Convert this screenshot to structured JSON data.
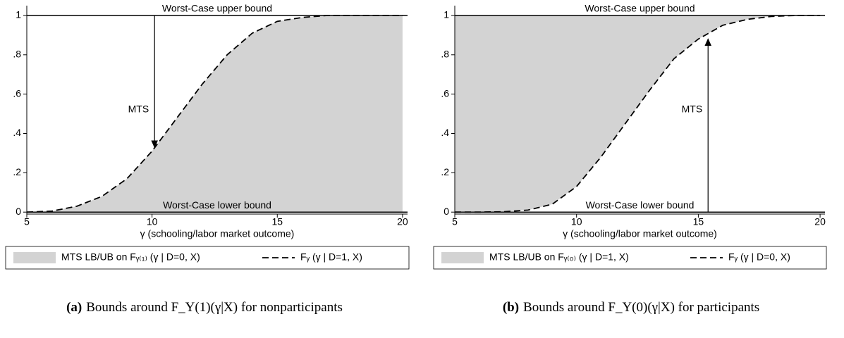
{
  "chart_data": [
    {
      "type": "line",
      "x_label": "γ (schooling/labor market outcome)",
      "x": [
        5,
        6,
        7,
        8,
        9,
        10,
        11,
        12,
        13,
        14,
        15,
        16,
        17,
        18,
        19,
        20
      ],
      "series": [
        {
          "name": "Fᵧ (γ | D=1, X)",
          "color": "#000000",
          "dash": true,
          "values": [
            0,
            0.005,
            0.03,
            0.08,
            0.17,
            0.31,
            0.48,
            0.65,
            0.8,
            0.91,
            0.97,
            0.99,
            1,
            1,
            1,
            1
          ]
        }
      ],
      "fill": {
        "name": "MTS LB/UB on Fᵧ₍₁₎ (γ | D=0, X)",
        "color": "#d3d3d3",
        "side": "below"
      },
      "bounds": [
        {
          "label": "Worst-Case upper bound",
          "value": 1
        },
        {
          "label": "Worst-Case lower bound",
          "value": 0
        }
      ],
      "annotation": {
        "text": "MTS",
        "x": 10.1,
        "from": 1,
        "to": 0.33
      },
      "xlim": [
        5,
        20.2
      ],
      "xticks": [
        5,
        10,
        15,
        20
      ],
      "ylim": [
        -0.01,
        1.05
      ],
      "yticks": [
        0,
        {
          "value": 0.2,
          "label": ".2"
        },
        {
          "value": 0.4,
          "label": ".4"
        },
        {
          "value": 0.6,
          "label": ".6"
        },
        {
          "value": 0.8,
          "label": ".8"
        },
        1
      ],
      "caption": {
        "label": "(a)",
        "text": "Bounds around F_Y(1)(γ|X) for nonparticipants"
      }
    },
    {
      "type": "line",
      "x_label": "γ (schooling/labor market outcome)",
      "x": [
        5,
        6,
        7,
        8,
        9,
        10,
        11,
        12,
        13,
        14,
        15,
        16,
        17,
        18,
        19,
        20
      ],
      "series": [
        {
          "name": "Fᵧ (γ | D=0, X)",
          "color": "#000000",
          "dash": true,
          "values": [
            0,
            0,
            0.002,
            0.01,
            0.04,
            0.13,
            0.28,
            0.45,
            0.62,
            0.78,
            0.88,
            0.95,
            0.98,
            0.995,
            1,
            1
          ]
        }
      ],
      "fill": {
        "name": "MTS LB/UB on Fᵧ₍₀₎ (γ | D=1, X)",
        "color": "#d3d3d3",
        "side": "above"
      },
      "bounds": [
        {
          "label": "Worst-Case upper bound",
          "value": 1
        },
        {
          "label": "Worst-Case lower bound",
          "value": 0
        }
      ],
      "annotation": {
        "text": "MTS",
        "x": 15.4,
        "from": 0,
        "to": 0.88
      },
      "xlim": [
        5,
        20.2
      ],
      "xticks": [
        5,
        10,
        15,
        20
      ],
      "ylim": [
        -0.01,
        1.05
      ],
      "yticks": [
        0,
        {
          "value": 0.2,
          "label": ".2"
        },
        {
          "value": 0.4,
          "label": ".4"
        },
        {
          "value": 0.6,
          "label": ".6"
        },
        {
          "value": 0.8,
          "label": ".8"
        },
        1
      ],
      "caption": {
        "label": "(b)",
        "text": "Bounds around F_Y(0)(γ|X) for participants"
      }
    }
  ]
}
